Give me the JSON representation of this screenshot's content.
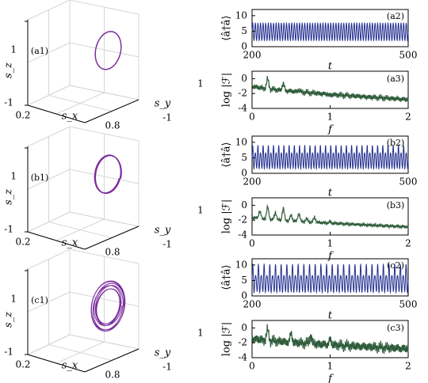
{
  "figure": {
    "colors": {
      "trajectory": "#7a2c9e",
      "photon_series": "#22308f",
      "spectrum_series": "#2e5b3a",
      "grid": "#d6d6d6",
      "axis": "#000000"
    }
  },
  "chart_data": [
    {
      "type": "line",
      "projection": "3d",
      "panel_label": "(a1)",
      "xlabel": "s_x",
      "ylabel": "s_y",
      "zlabel": "s_z",
      "xlim": [
        0.2,
        0.8
      ],
      "ylim": [
        -1,
        1
      ],
      "zlim": [
        -1,
        1
      ],
      "x_ticks": [
        "0.2",
        "0.8"
      ],
      "y_ticks": [
        "-1",
        "1"
      ],
      "z_ticks": [
        "-1",
        "1"
      ],
      "grid": true,
      "series": [
        {
          "style": "single closed loop",
          "center": [
            0.55,
            0.75,
            0.05
          ],
          "radius": [
            0.12,
            0.1,
            0.42
          ],
          "tilt": 0.25,
          "loops": 1
        }
      ]
    },
    {
      "type": "line",
      "panel_label": "(a2)",
      "xlabel": "t",
      "ylabel": "⟨â†â⟩",
      "xlim": [
        200,
        500
      ],
      "ylim": [
        0,
        12
      ],
      "x_ticks": [
        "200",
        "500"
      ],
      "y_ticks": [
        "0",
        "5",
        "10"
      ],
      "grid": false,
      "series": [
        {
          "style": "periodic oscillation",
          "min": 2.0,
          "max": 7.6,
          "cycles": 60,
          "modulation": 0
        }
      ]
    },
    {
      "type": "line",
      "panel_label": "(a3)",
      "xlabel": "f",
      "ylabel": "log |ℱ|",
      "xlim": [
        0,
        2
      ],
      "ylim": [
        -4,
        1
      ],
      "x_ticks": [
        "0",
        "1",
        "2"
      ],
      "y_ticks": [
        "-4",
        "-2",
        "0"
      ],
      "grid": false,
      "series": [
        {
          "style": "spectrum",
          "baseline_start": -1.0,
          "baseline_end": -2.8,
          "peaks": [
            [
              0.2,
              0.1
            ],
            [
              0.4,
              -0.6
            ],
            [
              0.6,
              -1.5
            ],
            [
              0.8,
              -1.9
            ],
            [
              1.0,
              -2.3
            ]
          ],
          "noise": 0.25
        }
      ]
    },
    {
      "type": "line",
      "projection": "3d",
      "panel_label": "(b1)",
      "xlabel": "s_x",
      "ylabel": "s_y",
      "zlabel": "s_z",
      "xlim": [
        0.2,
        0.8
      ],
      "ylim": [
        -1,
        1
      ],
      "zlim": [
        -1,
        1
      ],
      "x_ticks": [
        "0.2",
        "0.8"
      ],
      "y_ticks": [
        "-1",
        "1"
      ],
      "z_ticks": [
        "-1",
        "1"
      ],
      "grid": true,
      "series": [
        {
          "style": "double closed loop",
          "center": [
            0.55,
            0.7,
            0.05
          ],
          "radius": [
            0.14,
            0.12,
            0.5
          ],
          "tilt": 0.18,
          "loops": 2
        }
      ]
    },
    {
      "type": "line",
      "panel_label": "(b2)",
      "xlabel": "t",
      "ylabel": "⟨â†â⟩",
      "xlim": [
        200,
        500
      ],
      "ylim": [
        0,
        12
      ],
      "x_ticks": [
        "200",
        "500"
      ],
      "y_ticks": [
        "0",
        "5",
        "10"
      ],
      "grid": false,
      "series": [
        {
          "style": "period-doubled oscillation",
          "min": 1.6,
          "max": 7.8,
          "cycles": 60,
          "modulation": 1.2
        }
      ]
    },
    {
      "type": "line",
      "panel_label": "(b3)",
      "xlabel": "f",
      "ylabel": "log |ℱ|",
      "xlim": [
        0,
        2
      ],
      "ylim": [
        -4,
        1
      ],
      "x_ticks": [
        "0",
        "1",
        "2"
      ],
      "y_ticks": [
        "-4",
        "-2",
        "0"
      ],
      "grid": false,
      "series": [
        {
          "style": "spectrum",
          "baseline_start": -1.6,
          "baseline_end": -2.9,
          "peaks": [
            [
              0.1,
              -0.7
            ],
            [
              0.2,
              -0.1
            ],
            [
              0.3,
              -0.9
            ],
            [
              0.4,
              -0.3
            ],
            [
              0.5,
              -1.3
            ],
            [
              0.6,
              -1.0
            ],
            [
              0.7,
              -1.8
            ],
            [
              0.8,
              -1.6
            ],
            [
              1.0,
              -2.2
            ]
          ],
          "noise": 0.15
        }
      ]
    },
    {
      "type": "line",
      "projection": "3d",
      "panel_label": "(c1)",
      "xlabel": "s_x",
      "ylabel": "s_y",
      "zlabel": "s_z",
      "xlim": [
        0.2,
        0.8
      ],
      "ylim": [
        -1,
        1
      ],
      "zlim": [
        -1,
        1
      ],
      "x_ticks": [
        "0.2",
        "0.8"
      ],
      "y_ticks": [
        "-1",
        "1"
      ],
      "z_ticks": [
        "-1",
        "1"
      ],
      "grid": true,
      "series": [
        {
          "style": "torus-like band",
          "center": [
            0.55,
            0.75,
            -0.1
          ],
          "radius": [
            0.16,
            0.12,
            0.56
          ],
          "tilt": 0.3,
          "loops": 7
        }
      ]
    },
    {
      "type": "line",
      "panel_label": "(c2)",
      "xlabel": "t",
      "ylabel": "⟨â†â⟩",
      "xlim": [
        200,
        500
      ],
      "ylim": [
        0,
        12
      ],
      "x_ticks": [
        "200",
        "500"
      ],
      "y_ticks": [
        "0",
        "5",
        "10"
      ],
      "grid": false,
      "series": [
        {
          "style": "quasi-periodic oscillation",
          "min": 1.4,
          "max": 8.4,
          "cycles": 55,
          "modulation": 1.8
        }
      ]
    },
    {
      "type": "line",
      "panel_label": "(c3)",
      "xlabel": "f",
      "ylabel": "log |ℱ|",
      "xlim": [
        0,
        2
      ],
      "ylim": [
        -4,
        1
      ],
      "x_ticks": [
        "0",
        "1",
        "2"
      ],
      "y_ticks": [
        "-4",
        "-2",
        "0"
      ],
      "grid": false,
      "series": [
        {
          "style": "broadband spectrum",
          "baseline_start": -1.4,
          "baseline_end": -2.8,
          "peaks": [
            [
              0.2,
              -0.1
            ],
            [
              0.5,
              -0.7
            ],
            [
              0.75,
              -0.9
            ],
            [
              1.0,
              -1.5
            ]
          ],
          "noise": 0.45
        }
      ]
    }
  ]
}
